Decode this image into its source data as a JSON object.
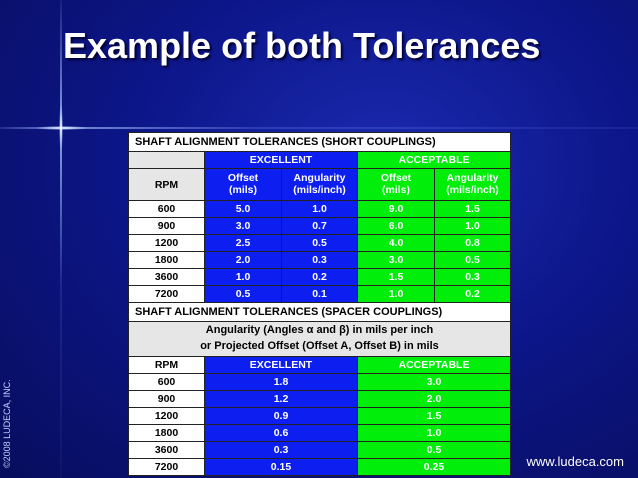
{
  "slide": {
    "title": "Example of both Tolerances",
    "copyright": "©2008 LUDECA, INC.",
    "url": "www.ludeca.com"
  },
  "short_table": {
    "title": "SHAFT ALIGNMENT TOLERANCES (SHORT COUPLINGS)",
    "group_excellent": "EXCELLENT",
    "group_acceptable": "ACCEPTABLE",
    "col_rpm": "RPM",
    "col_offset": [
      "Offset",
      "(mils)"
    ],
    "col_angularity": [
      "Angularity",
      "(mils/inch)"
    ],
    "rows": [
      [
        "600",
        "5.0",
        "1.0",
        "9.0",
        "1.5"
      ],
      [
        "900",
        "3.0",
        "0.7",
        "6.0",
        "1.0"
      ],
      [
        "1200",
        "2.5",
        "0.5",
        "4.0",
        "0.8"
      ],
      [
        "1800",
        "2.0",
        "0.3",
        "3.0",
        "0.5"
      ],
      [
        "3600",
        "1.0",
        "0.2",
        "1.5",
        "0.3"
      ],
      [
        "7200",
        "0.5",
        "0.1",
        "1.0",
        "0.2"
      ]
    ]
  },
  "spacer_table": {
    "title": "SHAFT ALIGNMENT TOLERANCES (SPACER COUPLINGS)",
    "desc_line1": "Angularity (Angles α and β) in mils per inch",
    "desc_line2": "or Projected Offset (Offset A, Offset B) in mils",
    "col_rpm": "RPM",
    "col_excellent": "EXCELLENT",
    "col_acceptable": "ACCEPTABLE",
    "rows": [
      [
        "600",
        "1.8",
        "3.0"
      ],
      [
        "900",
        "1.2",
        "2.0"
      ],
      [
        "1200",
        "0.9",
        "1.5"
      ],
      [
        "1800",
        "0.6",
        "1.0"
      ],
      [
        "3600",
        "0.3",
        "0.5"
      ],
      [
        "7200",
        "0.15",
        "0.25"
      ]
    ]
  },
  "colors": {
    "excellent": "#0d1ff0",
    "acceptable": "#00ee0a",
    "background": "#0d168a"
  }
}
